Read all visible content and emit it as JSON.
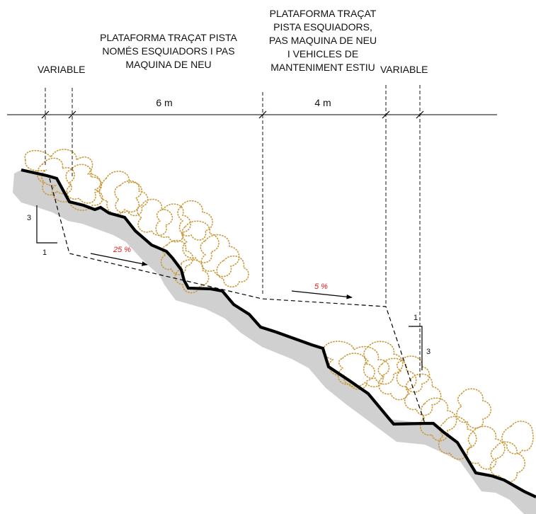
{
  "colors": {
    "terrain": "#000000",
    "shadow": "#d0d0d0",
    "scrub": "#c9993a",
    "slope_label": "#e21a1a"
  },
  "labels": {
    "variable_left": "VARIABLE",
    "variable_right": "VARIABLE",
    "ski_platform": [
      "PLATAFORMA TRAÇAT PISTA",
      "NOMÉS ESQUIADORS I PAS",
      "MAQUINA DE NEU"
    ],
    "shared_platform": [
      "PLATAFORMA TRAÇAT",
      "PISTA ESQUIADORS,",
      "PAS MAQUINA DE NEU",
      "I VEHICLES DE",
      "MANTENIMENT ESTIU"
    ]
  },
  "dimensions": {
    "width_ski": "6 m",
    "width_shared": "4 m"
  },
  "slopes": {
    "ski": "25 %",
    "shared": "5 %"
  },
  "ratios": {
    "left": {
      "rise": "3",
      "run": "1"
    },
    "right": {
      "rise": "3",
      "run": "1"
    }
  },
  "icons": [
    "scrub-vegetation",
    "slope-arrow"
  ]
}
